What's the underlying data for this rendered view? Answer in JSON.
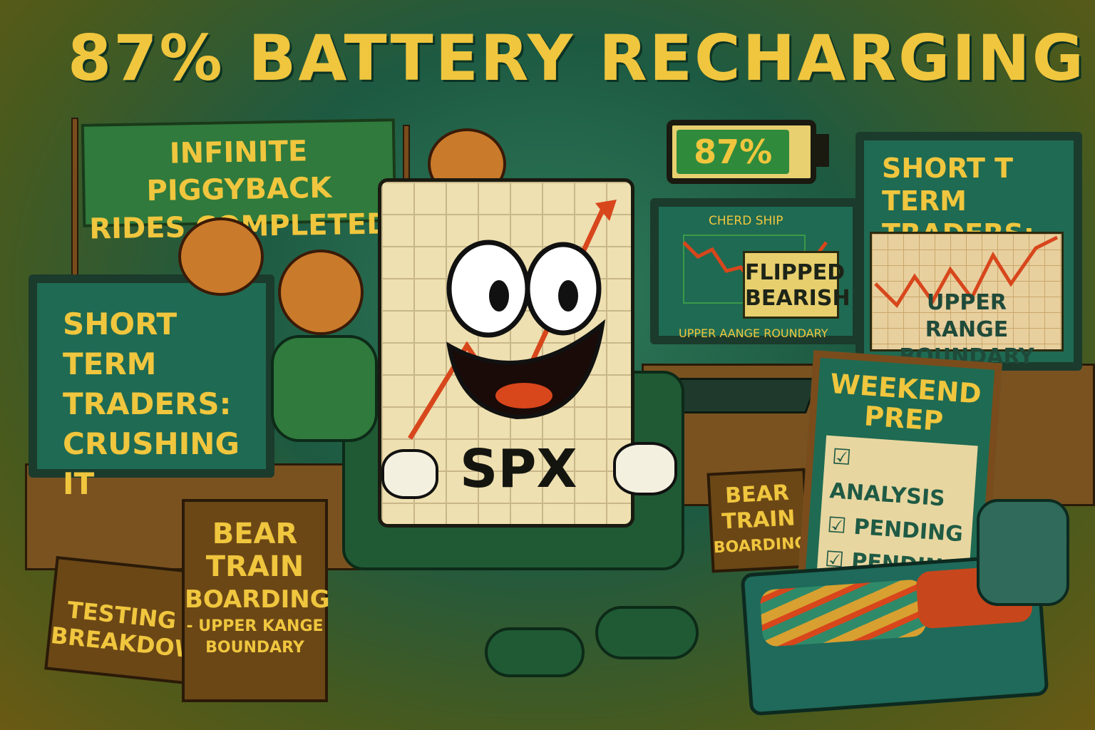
{
  "title": "87% BATTERY RECHARGING",
  "banner": {
    "line1": "INFINITE PIGGYBACK",
    "line2": "RIDES COMPLETED"
  },
  "battery": {
    "label": "87%",
    "level_percent": 87
  },
  "left_monitor": {
    "lines": [
      "SHORT",
      "TERM",
      "TRADERS:",
      "CRUSHING IT"
    ]
  },
  "center_monitor": {
    "header": "CHERD SHIP",
    "note_line1": "FLIPPED",
    "note_line2": "BEARISH",
    "footer": "UPPER AANGE ROUNDARY"
  },
  "right_monitor": {
    "line1": "SHORT T TERM",
    "line2": "TRADERS:",
    "chart_line1": "UPPER",
    "chart_line2": "RANGE BOUNDARY"
  },
  "mascot": {
    "label": "SPX"
  },
  "box_left": {
    "line1": "TESTING",
    "line2": "BREAKDOWN"
  },
  "box_right": {
    "line1": "BEAR",
    "line2": "TRAIN",
    "line3": "BOARDING",
    "line4": "- UPPER KANGE",
    "line5": "BOUNDARY"
  },
  "small_sign": {
    "line1": "BEAR",
    "line2": "TRAIN",
    "line3": "BOARDING"
  },
  "weekend_board": {
    "title1": "WEEKEND",
    "title2": "PREP",
    "items": [
      "ANALYSIS",
      "PENDING",
      "PENDING",
      ""
    ]
  },
  "colors": {
    "text_yellow": "#f0c63e",
    "screen_green": "#1f6a52",
    "chart_red": "#d8461c"
  }
}
